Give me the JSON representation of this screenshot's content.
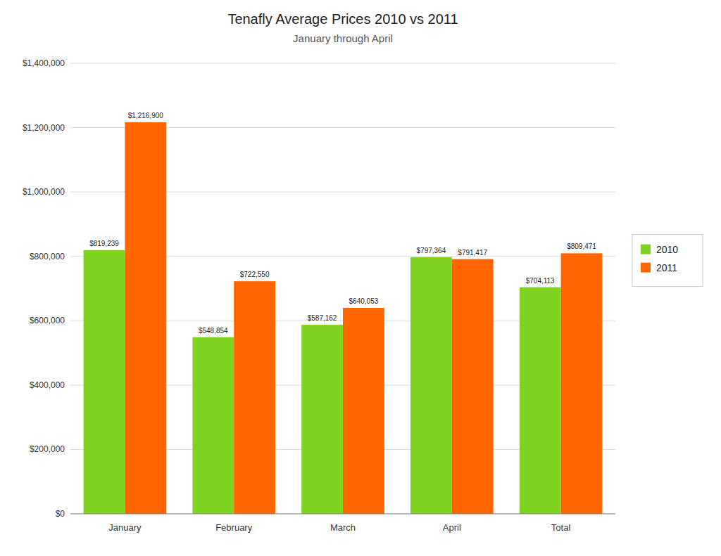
{
  "chart_data": {
    "type": "bar",
    "title": "Tenafly Average Prices  2010 vs 2011",
    "subtitle": "January through April",
    "categories": [
      "January",
      "February",
      "March",
      "April",
      "Total"
    ],
    "series": [
      {
        "name": "2010",
        "color": "#7FD320",
        "values": [
          819239,
          548854,
          587162,
          797364,
          704113
        ],
        "value_labels": [
          "$819,239",
          "$548,854",
          "$587,162",
          "$797,364",
          "$704,113"
        ]
      },
      {
        "name": "2011",
        "color": "#FF6600",
        "values": [
          1216900,
          722550,
          640053,
          791417,
          809471
        ],
        "value_labels": [
          "$1,216,900",
          "$722,550",
          "$640,053",
          "$791,417",
          "$809,471"
        ]
      }
    ],
    "ylim": [
      0,
      1400000
    ],
    "yticks": [
      {
        "value": 0,
        "label": "$0"
      },
      {
        "value": 200000,
        "label": "$200,000"
      },
      {
        "value": 400000,
        "label": "$400,000"
      },
      {
        "value": 600000,
        "label": "$600,000"
      },
      {
        "value": 800000,
        "label": "$800,000"
      },
      {
        "value": 1000000,
        "label": "$1,000,000"
      },
      {
        "value": 1200000,
        "label": "$1,200,000"
      },
      {
        "value": 1400000,
        "label": "$1,400,000"
      }
    ],
    "grid": true,
    "legend": "right",
    "data_labels": true
  }
}
